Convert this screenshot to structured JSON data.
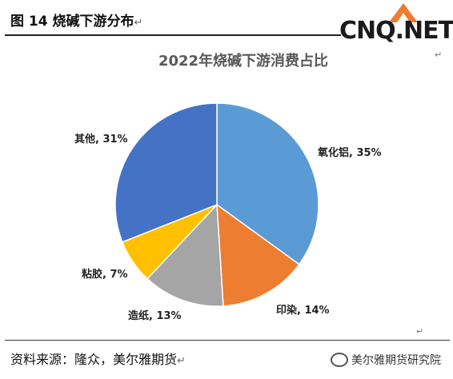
{
  "figure_title": "图 14 烧碱下游分布",
  "logo_text": "CNQ.NET",
  "source": "资料来源：隆众，美尔雅期货",
  "watermark": "美尔雅期货研究院",
  "colors": {
    "slice_1": "#5b9bd5",
    "slice_2": "#ed7d31",
    "slice_3": "#a5a5a5",
    "slice_4": "#ffc000",
    "slice_5": "#4472c4",
    "logo_accent": "#ed7d31"
  },
  "chart_data": {
    "type": "pie",
    "title": "2022年烧碱下游消费占比",
    "categories": [
      "氧化铝",
      "印染",
      "造纸",
      "粘胶",
      "其他"
    ],
    "values": [
      35,
      14,
      13,
      7,
      31
    ],
    "labels": [
      "氧化铝, 35%",
      "印染, 14%",
      "造纸, 13%",
      "粘胶, 7%",
      "其他, 31%"
    ],
    "start": "12 o'clock",
    "direction": "clockwise",
    "legend": "none"
  }
}
